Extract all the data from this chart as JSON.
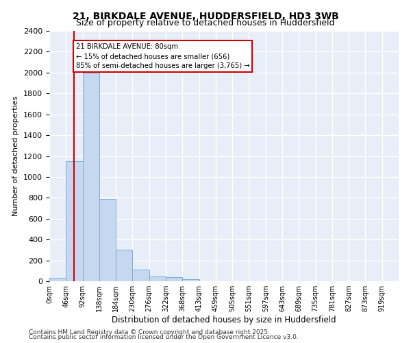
{
  "title_line1": "21, BIRKDALE AVENUE, HUDDERSFIELD, HD3 3WB",
  "title_line2": "Size of property relative to detached houses in Huddersfield",
  "xlabel": "Distribution of detached houses by size in Huddersfield",
  "ylabel": "Number of detached properties",
  "footer_line1": "Contains HM Land Registry data © Crown copyright and database right 2025.",
  "footer_line2": "Contains public sector information licensed under the Open Government Licence v3.0.",
  "bin_labels": [
    "0sqm",
    "46sqm",
    "92sqm",
    "138sqm",
    "184sqm",
    "230sqm",
    "276sqm",
    "322sqm",
    "368sqm",
    "413sqm",
    "459sqm",
    "505sqm",
    "551sqm",
    "597sqm",
    "643sqm",
    "689sqm",
    "735sqm",
    "781sqm",
    "827sqm",
    "873sqm",
    "919sqm"
  ],
  "bar_values": [
    35,
    1150,
    2000,
    790,
    305,
    110,
    48,
    38,
    20,
    0,
    0,
    0,
    0,
    0,
    0,
    0,
    0,
    0,
    0,
    0,
    0
  ],
  "bar_color": "#c5d8f0",
  "bar_edge_color": "#7aaed6",
  "background_color": "#e8eef7",
  "grid_color": "#ffffff",
  "annotation_text": "21 BIRKDALE AVENUE: 80sqm\n← 15% of detached houses are smaller (656)\n85% of semi-detached houses are larger (3,765) →",
  "annotation_box_color": "#ffffff",
  "annotation_box_edge": "#cc0000",
  "vline_x": 1.5,
  "vline_color": "#cc0000",
  "ylim": [
    0,
    2400
  ],
  "yticks": [
    0,
    200,
    400,
    600,
    800,
    1000,
    1200,
    1400,
    1600,
    1800,
    2000,
    2200,
    2400
  ]
}
